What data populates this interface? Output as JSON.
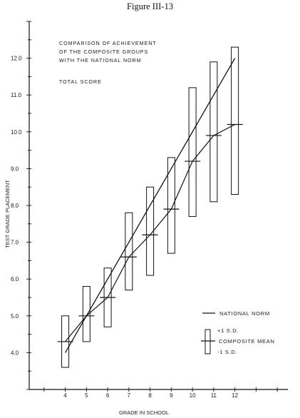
{
  "figure_label": "Figure III-13",
  "chart_data": {
    "type": "line",
    "title_lines": [
      "COMPARISON OF ACHIEVEMENT",
      "OF THE COMPOSITE GROUPS",
      "WITH THE NATIONAL NORM"
    ],
    "subtitle": "TOTAL SCORE",
    "xlabel": "GRADE IN SCHOOL",
    "ylabel": "TEST GRADE PLACEMENT",
    "xlim": [
      2.3,
      14.5
    ],
    "ylim": [
      3.0,
      13.0
    ],
    "x_ticks": [
      4,
      5,
      6,
      7,
      8,
      9,
      10,
      11,
      12
    ],
    "y_ticks": [
      "4.0",
      "5.0",
      "6.0",
      "7.0",
      "8.0",
      "9.0",
      "10.0",
      "11.0",
      "12.0"
    ],
    "grid": false,
    "legend_position": "bottom-right",
    "series": [
      {
        "name": "NATIONAL NORM",
        "x": [
          4,
          12
        ],
        "y": [
          4.0,
          12.0
        ]
      },
      {
        "name": "COMPOSITE MEAN",
        "x": [
          4,
          5,
          6,
          7,
          8,
          9,
          10,
          11,
          12
        ],
        "y": [
          4.3,
          5.0,
          5.5,
          6.6,
          7.2,
          7.9,
          9.2,
          9.9,
          10.2
        ],
        "plus_1sd": [
          5.0,
          5.8,
          6.3,
          7.8,
          8.5,
          9.3,
          11.2,
          11.9,
          12.3
        ],
        "minus_1sd": [
          3.6,
          4.3,
          4.7,
          5.7,
          6.1,
          6.7,
          7.7,
          8.1,
          8.3
        ]
      }
    ],
    "legend": {
      "norm_label": "NATIONAL NORM",
      "plus_label": "+1 S.D.",
      "mean_label": "COMPOSITE MEAN",
      "minus_label": "-1 S.D."
    }
  }
}
